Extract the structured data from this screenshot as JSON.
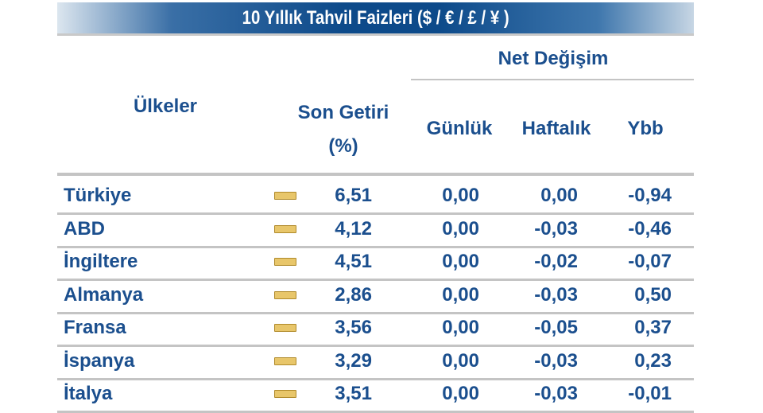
{
  "title": "10 Yıllık Tahvil Faizleri ($ / € / £ / ¥ )",
  "headers": {
    "countries": "Ülkeler",
    "last_yield_1": "Son Getiri",
    "last_yield_2": "(%)",
    "net_change": "Net Değişim",
    "daily": "Günlük",
    "weekly": "Haftalık",
    "ytd": "Ybb"
  },
  "trend_icon": "unchanged-dash-icon",
  "rows": [
    {
      "country": "Türkiye",
      "yield": "6,51",
      "daily": "0,00",
      "weekly": "0,00",
      "ytd": "-0,94"
    },
    {
      "country": "ABD",
      "yield": "4,12",
      "daily": "0,00",
      "weekly": "-0,03",
      "ytd": "-0,46"
    },
    {
      "country": "İngiltere",
      "yield": "4,51",
      "daily": "0,00",
      "weekly": "-0,02",
      "ytd": "-0,07"
    },
    {
      "country": "Almanya",
      "yield": "2,86",
      "daily": "0,00",
      "weekly": "-0,03",
      "ytd": "0,50"
    },
    {
      "country": "Fransa",
      "yield": "3,56",
      "daily": "0,00",
      "weekly": "-0,05",
      "ytd": "0,37"
    },
    {
      "country": "İspanya",
      "yield": "3,29",
      "daily": "0,00",
      "weekly": "-0,03",
      "ytd": "0,23"
    },
    {
      "country": "İtalya",
      "yield": "3,51",
      "daily": "0,00",
      "weekly": "-0,03",
      "ytd": "-0,01"
    }
  ]
}
